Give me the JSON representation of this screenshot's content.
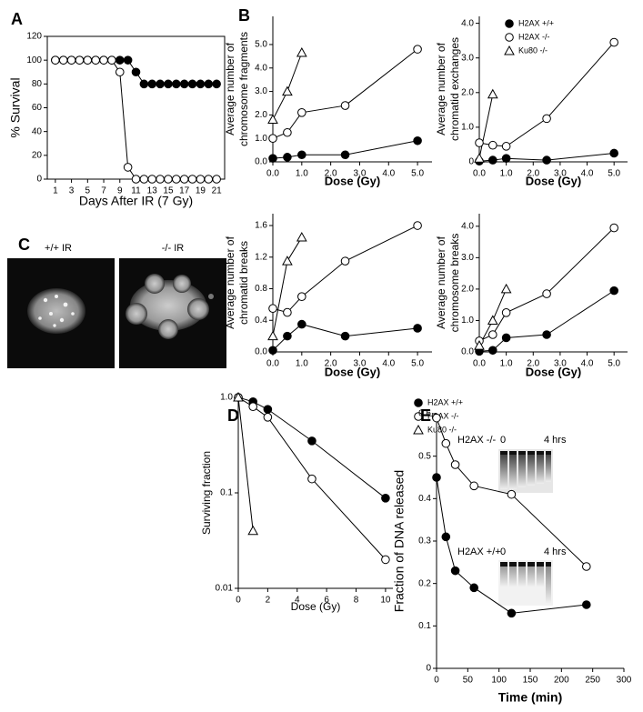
{
  "chart_data": [
    {
      "type": "line",
      "panel": "A",
      "frame": "box",
      "xlabel": "Days After IR (7 Gy)",
      "ylabel": "% Survival",
      "xlim": [
        0,
        22
      ],
      "ylim": [
        0,
        120
      ],
      "xticks": [
        1,
        3,
        5,
        7,
        9,
        11,
        13,
        15,
        17,
        19,
        21
      ],
      "yticks": [
        0,
        20,
        40,
        60,
        80,
        100,
        120
      ],
      "series": [
        {
          "marker": "filled-circle",
          "color": "#000000",
          "x": [
            1,
            2,
            3,
            4,
            5,
            6,
            7,
            8,
            9,
            10,
            11,
            12,
            13,
            14,
            15,
            16,
            17,
            18,
            19,
            20,
            21
          ],
          "values": [
            100,
            100,
            100,
            100,
            100,
            100,
            100,
            100,
            100,
            100,
            90,
            80,
            80,
            80,
            80,
            80,
            80,
            80,
            80,
            80,
            80
          ]
        },
        {
          "marker": "open-circle",
          "color": "#000000",
          "x": [
            1,
            2,
            3,
            4,
            5,
            6,
            7,
            8,
            9,
            10,
            11,
            12,
            13,
            14,
            15,
            16,
            17,
            18,
            19,
            20,
            21
          ],
          "values": [
            100,
            100,
            100,
            100,
            100,
            100,
            100,
            100,
            90,
            10,
            0,
            0,
            0,
            0,
            0,
            0,
            0,
            0,
            0,
            0,
            0
          ]
        }
      ]
    },
    {
      "type": "line",
      "panel": "B",
      "frame": "axes",
      "xlabel": "Dose (Gy)",
      "ylabel": [
        "Average number of",
        "chromosome fragments"
      ],
      "xlim": [
        0,
        5.5
      ],
      "ylim": [
        0,
        6.2
      ],
      "xticks": [
        {
          "value": 0,
          "label": "0.0"
        },
        {
          "value": 1,
          "label": "1.0"
        },
        {
          "value": 2,
          "label": "2.0"
        },
        {
          "value": 3,
          "label": "3.0"
        },
        {
          "value": 4,
          "label": "4.0"
        },
        {
          "value": 5,
          "label": "5.0"
        }
      ],
      "yticks": [
        {
          "value": 0,
          "label": "0.0"
        },
        {
          "value": 1,
          "label": "1.0"
        },
        {
          "value": 2,
          "label": "2.0"
        },
        {
          "value": 3,
          "label": "3.0"
        },
        {
          "value": 4,
          "label": "4.0"
        },
        {
          "value": 5,
          "label": "5.0"
        }
      ],
      "series": [
        {
          "marker": "filled-circle",
          "color": "#000000",
          "x": [
            0,
            0.5,
            1,
            2.5,
            5
          ],
          "values": [
            0.15,
            0.2,
            0.3,
            0.3,
            0.9
          ]
        },
        {
          "marker": "open-circle",
          "color": "#000000",
          "x": [
            0,
            0.5,
            1,
            2.5,
            5
          ],
          "values": [
            1.0,
            1.25,
            2.1,
            2.4,
            4.8
          ]
        },
        {
          "marker": "open-triangle",
          "color": "#000000",
          "x": [
            0,
            0.5,
            1
          ],
          "values": [
            1.8,
            3.0,
            4.65
          ]
        }
      ]
    },
    {
      "type": "line",
      "frame": "axes",
      "xlabel": "Dose (Gy)",
      "ylabel": [
        "Average number of",
        "chromatid exchanges"
      ],
      "xlim": [
        0,
        5.5
      ],
      "ylim": [
        0,
        4.2
      ],
      "legend": "upper right",
      "xticks": [
        {
          "value": 0,
          "label": "0.0"
        },
        {
          "value": 1,
          "label": "1.0"
        },
        {
          "value": 2,
          "label": "2.0"
        },
        {
          "value": 3,
          "label": "3.0"
        },
        {
          "value": 4,
          "label": "4.0"
        },
        {
          "value": 5,
          "label": "5.0"
        }
      ],
      "yticks": [
        0,
        {
          "value": 1,
          "label": "1.0"
        },
        {
          "value": 2,
          "label": "2.0"
        },
        {
          "value": 3,
          "label": "3.0"
        },
        {
          "value": 4,
          "label": "4.0"
        }
      ],
      "series": [
        {
          "name": "H2AX +/+",
          "marker": "filled-circle",
          "color": "#000000",
          "x": [
            0,
            0.5,
            1,
            2.5,
            5
          ],
          "values": [
            0.02,
            0.05,
            0.1,
            0.05,
            0.25
          ]
        },
        {
          "name": "H2AX -/-",
          "marker": "open-circle",
          "color": "#000000",
          "x": [
            0,
            0.5,
            1,
            2.5,
            5
          ],
          "values": [
            0.55,
            0.48,
            0.45,
            1.25,
            3.45
          ]
        },
        {
          "name": "Ku80 -/-",
          "marker": "open-triangle",
          "color": "#000000",
          "x": [
            0,
            0.5
          ],
          "values": [
            0.1,
            1.95
          ]
        }
      ]
    },
    {
      "type": "line",
      "frame": "axes",
      "xlabel": "Dose (Gy)",
      "ylabel": [
        "Average number of",
        "chromatid breaks"
      ],
      "xlim": [
        0,
        5.5
      ],
      "ylim": [
        0,
        1.75
      ],
      "xticks": [
        {
          "value": 0,
          "label": "0.0"
        },
        {
          "value": 1,
          "label": "1.0"
        },
        {
          "value": 2,
          "label": "2.0"
        },
        {
          "value": 3,
          "label": "3.0"
        },
        {
          "value": 4,
          "label": "4.0"
        },
        {
          "value": 5,
          "label": "5.0"
        }
      ],
      "yticks": [
        {
          "value": 0,
          "label": "0.0"
        },
        0.4,
        0.8,
        1.2,
        1.6
      ],
      "series": [
        {
          "marker": "filled-circle",
          "color": "#000000",
          "x": [
            0,
            0.5,
            1,
            2.5,
            5
          ],
          "values": [
            0.02,
            0.2,
            0.35,
            0.2,
            0.3
          ]
        },
        {
          "marker": "open-circle",
          "color": "#000000",
          "x": [
            0,
            0.5,
            1,
            2.5,
            5
          ],
          "values": [
            0.55,
            0.5,
            0.7,
            1.15,
            1.6
          ]
        },
        {
          "marker": "open-triangle",
          "color": "#000000",
          "x": [
            0,
            0.5,
            1
          ],
          "values": [
            0.2,
            1.15,
            1.45
          ]
        }
      ]
    },
    {
      "type": "line",
      "frame": "axes",
      "xlabel": "Dose (Gy)",
      "ylabel": [
        "Average number of",
        "chromosome breaks"
      ],
      "xlim": [
        0,
        5.5
      ],
      "ylim": [
        0,
        4.4
      ],
      "xticks": [
        {
          "value": 0,
          "label": "0.0"
        },
        {
          "value": 1,
          "label": "1.0"
        },
        {
          "value": 2,
          "label": "2.0"
        },
        {
          "value": 3,
          "label": "3.0"
        },
        {
          "value": 4,
          "label": "4.0"
        },
        {
          "value": 5,
          "label": "5.0"
        }
      ],
      "yticks": [
        {
          "value": 0,
          "label": "0.0"
        },
        {
          "value": 1,
          "label": "1.0"
        },
        {
          "value": 2,
          "label": "2.0"
        },
        {
          "value": 3,
          "label": "3.0"
        },
        {
          "value": 4,
          "label": "4.0"
        }
      ],
      "series": [
        {
          "marker": "filled-circle",
          "color": "#000000",
          "x": [
            0,
            0.5,
            1,
            2.5,
            5
          ],
          "values": [
            0.02,
            0.05,
            0.45,
            0.55,
            1.95
          ]
        },
        {
          "marker": "open-circle",
          "color": "#000000",
          "x": [
            0,
            0.5,
            1,
            2.5,
            5
          ],
          "values": [
            0.35,
            0.55,
            1.25,
            1.85,
            3.95
          ]
        },
        {
          "marker": "open-triangle",
          "color": "#000000",
          "x": [
            0,
            0.5,
            1
          ],
          "values": [
            0.2,
            1.0,
            2.0
          ]
        }
      ]
    },
    {
      "type": "line",
      "panel": "D",
      "frame": "axes",
      "xlabel": "Dose (Gy)",
      "ylabel": "Surviving fraction",
      "xlim": [
        0,
        10.5
      ],
      "ylim": [
        0.01,
        1
      ],
      "ylog": true,
      "legend": "outside right",
      "xticks": [
        0,
        2,
        4,
        6,
        8,
        10
      ],
      "yticks": [
        0.01,
        0.1,
        {
          "value": 1,
          "label": "1.0"
        }
      ],
      "series": [
        {
          "name": "H2AX +/+",
          "marker": "filled-circle",
          "color": "#000000",
          "x": [
            0,
            1,
            2,
            5,
            10
          ],
          "values": [
            1.0,
            0.9,
            0.75,
            0.35,
            0.088
          ]
        },
        {
          "name": "H2AX -/-",
          "marker": "open-circle",
          "color": "#000000",
          "x": [
            0,
            1,
            2,
            5,
            10
          ],
          "values": [
            1.0,
            0.8,
            0.62,
            0.14,
            0.02
          ]
        },
        {
          "name": "Ku80 -/-",
          "marker": "open-triangle",
          "color": "#000000",
          "x": [
            0,
            1
          ],
          "values": [
            1.0,
            0.04
          ]
        }
      ]
    },
    {
      "type": "line",
      "panel": "E",
      "frame": "axes",
      "xlabel": "Time (min)",
      "ylabel": "Fraction of DNA released",
      "xlim": [
        0,
        300
      ],
      "ylim": [
        0,
        0.6
      ],
      "xticks": [
        0,
        50,
        100,
        150,
        200,
        250,
        300
      ],
      "yticks": [
        0,
        0.1,
        0.2,
        0.3,
        0.4,
        0.5,
        0.6
      ],
      "annotations": [
        "H2AX -/-",
        "0",
        "4 hrs",
        "H2AX +/+",
        "0",
        "4 hrs"
      ],
      "series": [
        {
          "marker": "open-circle",
          "color": "#000000",
          "x": [
            0,
            15,
            30,
            60,
            120,
            240
          ],
          "values": [
            0.59,
            0.53,
            0.48,
            0.43,
            0.41,
            0.24
          ]
        },
        {
          "marker": "filled-circle",
          "color": "#000000",
          "x": [
            0,
            15,
            30,
            60,
            120,
            240
          ],
          "values": [
            0.45,
            0.31,
            0.23,
            0.19,
            0.13,
            0.15
          ]
        }
      ]
    }
  ],
  "panel_c": {
    "letter": "C",
    "labels": [
      "+/+ IR",
      "-/- IR"
    ]
  }
}
